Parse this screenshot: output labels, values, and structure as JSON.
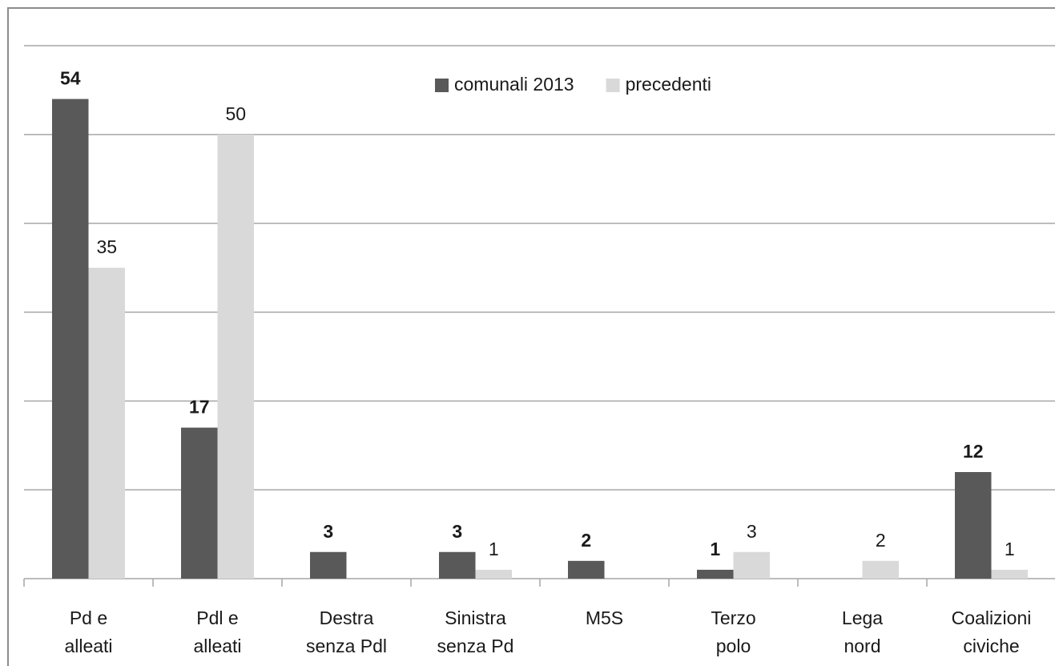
{
  "chart_data": {
    "type": "bar",
    "categories": [
      "Pd e\nalleati",
      "Pdl e\nalleati",
      "Destra\nsenza Pdl",
      "Sinistra\nsenza Pd",
      "M5S",
      "Terzo\npolo",
      "Lega\nnord",
      "Coalizioni\nciviche"
    ],
    "series": [
      {
        "name": "comunali 2013",
        "color": "#595959",
        "values": [
          54,
          17,
          3,
          3,
          2,
          1,
          null,
          12
        ]
      },
      {
        "name": "precedenti",
        "color": "#d9d9d9",
        "values": [
          35,
          50,
          null,
          1,
          null,
          3,
          2,
          1
        ]
      }
    ],
    "ylim": [
      0,
      60
    ],
    "yticks": [
      0,
      10,
      20,
      30,
      40,
      50,
      60
    ],
    "grid": true,
    "legend": "top"
  }
}
